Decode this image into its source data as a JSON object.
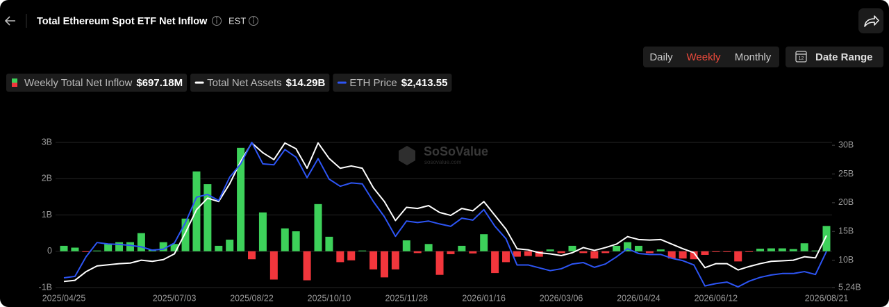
{
  "header": {
    "title": "Total Ethereum Spot ETF Net Inflow",
    "timezone": "EST"
  },
  "controls": {
    "periods": [
      "Daily",
      "Weekly",
      "Monthly"
    ],
    "active_period": 1,
    "date_range": "Date Range",
    "calendar_day": "12"
  },
  "watermark": {
    "brand": "SoSoValue",
    "site": "sosovalue.com"
  },
  "chart_data": {
    "type": "bar",
    "categories": [
      "2025/04/25",
      null,
      null,
      null,
      null,
      null,
      null,
      null,
      null,
      null,
      "2025/07/03",
      null,
      null,
      null,
      null,
      null,
      null,
      "2025/08/22",
      null,
      null,
      null,
      null,
      null,
      null,
      "2025/10/10",
      null,
      null,
      null,
      null,
      null,
      null,
      "2025/11/28",
      null,
      null,
      null,
      null,
      null,
      null,
      "2026/01/16",
      null,
      null,
      null,
      null,
      null,
      null,
      "2026/03/06",
      null,
      null,
      null,
      null,
      null,
      null,
      "2026/04/24",
      null,
      null,
      null,
      null,
      null,
      null,
      "2026/06/12",
      null,
      null,
      null,
      null,
      null,
      null,
      null,
      null,
      null,
      "2026/08/21"
    ],
    "ylim": [
      -1,
      3
    ],
    "yticks": [
      {
        "value": -1,
        "label": "-1B"
      },
      0,
      {
        "value": 1,
        "label": "1B"
      },
      {
        "value": 2,
        "label": "2B"
      },
      {
        "value": 3,
        "label": "3B"
      }
    ],
    "y2lim": [
      5.24,
      30.5
    ],
    "y2ticks": [
      {
        "value": 5.24,
        "label": "5.24B"
      },
      {
        "value": 10,
        "label": "10B"
      },
      {
        "value": 15,
        "label": "15B"
      },
      {
        "value": 20,
        "label": "20B"
      },
      {
        "value": 25,
        "label": "25B"
      },
      {
        "value": 30,
        "label": "30B"
      }
    ],
    "y3lim": [
      1656,
      4700
    ],
    "grid": true,
    "series": [
      {
        "name": "Weekly Total Net Inflow",
        "type": "bar",
        "color": "#3dd15a",
        "negative_color": "#f2363c",
        "latest_label": "$697.18M",
        "values": [
          0.15,
          0.1,
          -0.02,
          0.02,
          0.2,
          0.25,
          0.25,
          0.5,
          0.05,
          0.25,
          0.2,
          0.9,
          2.2,
          1.85,
          0.15,
          0.32,
          2.85,
          -0.22,
          1.07,
          -0.78,
          0.63,
          0.55,
          -0.8,
          1.3,
          0.4,
          -0.3,
          -0.25,
          0.02,
          -0.5,
          -0.72,
          -0.5,
          0.3,
          -0.05,
          0.2,
          -0.65,
          -0.08,
          0.15,
          -0.06,
          0.47,
          -0.6,
          -0.3,
          -0.15,
          -0.13,
          -0.15,
          0.05,
          -0.05,
          0.15,
          -0.05,
          -0.2,
          -0.05,
          0.15,
          0.25,
          0.15,
          -0.05,
          0.05,
          -0.2,
          -0.2,
          -0.22,
          -0.1,
          -0.02,
          -0.02,
          -0.28,
          -0.02,
          0.07,
          0.08,
          0.08,
          0.06,
          0.22,
          0.02,
          0.69718
        ]
      },
      {
        "name": "Total Net Assets",
        "type": "line",
        "axis": "y2",
        "color": "#ffffff",
        "latest_label": "$14.29B",
        "values": [
          6.3,
          6.5,
          8.0,
          9.0,
          9.2,
          9.4,
          9.5,
          10.0,
          9.8,
          10.1,
          11.1,
          14.8,
          18.8,
          20.8,
          20.2,
          23.3,
          27.2,
          30.4,
          28.7,
          27.5,
          30.4,
          29.4,
          26.0,
          30.4,
          27.7,
          26.0,
          26.4,
          26.0,
          22.6,
          20.2,
          16.9,
          19.2,
          19.0,
          19.5,
          18.3,
          17.8,
          19.0,
          18.6,
          20.2,
          17.8,
          15.4,
          12.0,
          11.8,
          11.3,
          11.1,
          10.8,
          11.3,
          12.2,
          11.7,
          12.2,
          12.8,
          14.1,
          13.6,
          13.5,
          13.6,
          12.8,
          12.0,
          11.3,
          8.7,
          9.4,
          9.4,
          8.3,
          8.9,
          9.4,
          9.8,
          9.9,
          10.0,
          10.6,
          10.4,
          14.29
        ]
      },
      {
        "name": "ETH Price",
        "type": "line",
        "axis": "y3",
        "color": "#2d55f5",
        "latest_label": "$2,413.55",
        "values": [
          1860,
          1890,
          2300,
          2600,
          2570,
          2560,
          2540,
          2510,
          2440,
          2460,
          2590,
          3020,
          3550,
          3610,
          3480,
          3970,
          4250,
          4700,
          4250,
          4230,
          4550,
          4390,
          3960,
          4360,
          3930,
          3780,
          3850,
          3830,
          3460,
          3140,
          2730,
          3050,
          3020,
          3050,
          2990,
          2940,
          3110,
          3070,
          3290,
          2940,
          2680,
          2130,
          2130,
          2070,
          2010,
          2050,
          2150,
          2180,
          2080,
          2150,
          2300,
          2470,
          2370,
          2350,
          2350,
          2270,
          2220,
          2130,
          1690,
          1740,
          1770,
          1670,
          1790,
          1870,
          1920,
          1950,
          1950,
          1990,
          1930,
          2413.55
        ]
      }
    ]
  }
}
